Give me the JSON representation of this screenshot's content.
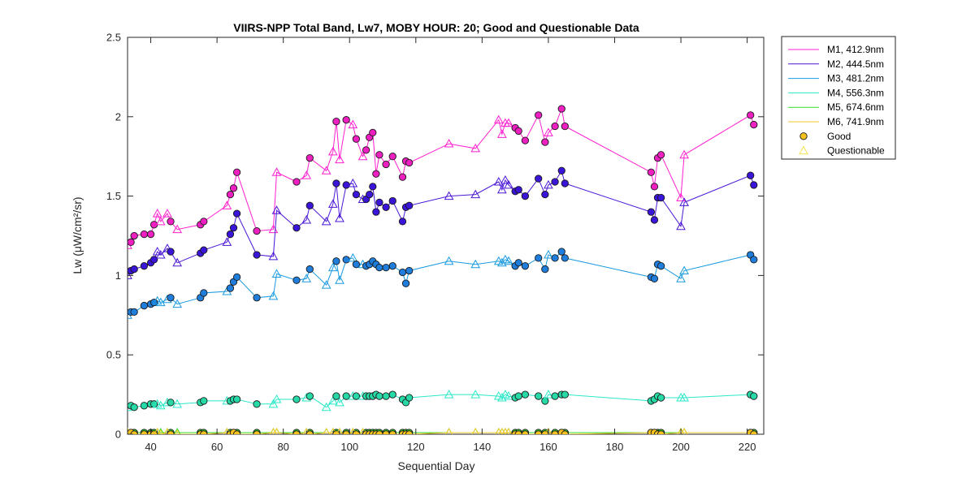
{
  "chart_data": {
    "type": "line",
    "title": "VIIRS-NPP Total Band,  Lw7, MOBY HOUR: 20;  Good and Questionable Data",
    "xlabel": "Sequential Day",
    "ylabel": "Lw (μW/cm²/sr)",
    "xlim": [
      33,
      225
    ],
    "ylim": [
      0,
      2.5
    ],
    "xticks": [
      40,
      60,
      80,
      100,
      120,
      140,
      160,
      180,
      200,
      220
    ],
    "yticks": [
      0,
      0.5,
      1,
      1.5,
      2,
      2.5
    ],
    "xtick_labels": [
      "40",
      "60",
      "80",
      "100",
      "120",
      "140",
      "160",
      "180",
      "200",
      "220"
    ],
    "ytick_labels": [
      "0",
      "0.5",
      "1",
      "1.5",
      "2",
      "2.5"
    ],
    "x": [
      33,
      34,
      35,
      38,
      40,
      41,
      42,
      43,
      45,
      46,
      48,
      55,
      56,
      63,
      64,
      65,
      66,
      72,
      77,
      78,
      84,
      87,
      88,
      93,
      95,
      96,
      97,
      99,
      101,
      102,
      104,
      105,
      106,
      107,
      108,
      109,
      111,
      113,
      116,
      117,
      118,
      130,
      138,
      145,
      146,
      147,
      148,
      150,
      151,
      153,
      157,
      159,
      160,
      162,
      164,
      165,
      191,
      192,
      193,
      194,
      200,
      201,
      221,
      222
    ],
    "quality": [
      "Q",
      "G",
      "G",
      "G",
      "G",
      "G",
      "Q",
      "Q",
      "Q",
      "G",
      "Q",
      "G",
      "G",
      "Q",
      "G",
      "G",
      "G",
      "G",
      "Q",
      "Q",
      "G",
      "Q",
      "G",
      "Q",
      "Q",
      "G",
      "Q",
      "G",
      "Q",
      "G",
      "Q",
      "G",
      "G",
      "G",
      "G",
      "G",
      "G",
      "G",
      "G",
      "G",
      "G",
      "Q",
      "Q",
      "Q",
      "Q",
      "Q",
      "Q",
      "G",
      "G",
      "G",
      "G",
      "G",
      "Q",
      "G",
      "G",
      "G",
      "G",
      "G",
      "G",
      "G",
      "Q",
      "Q",
      "G",
      "G"
    ],
    "series": [
      {
        "name": "M1, 412.9nm",
        "color": "#ff1fcf",
        "fill": "#ee1fc0",
        "values": [
          1.19,
          1.21,
          1.25,
          1.26,
          1.26,
          1.32,
          1.39,
          1.34,
          1.39,
          1.34,
          1.29,
          1.32,
          1.34,
          1.44,
          1.51,
          1.55,
          1.65,
          1.28,
          1.29,
          1.65,
          1.59,
          1.63,
          1.74,
          1.66,
          1.78,
          1.97,
          1.73,
          1.98,
          1.95,
          1.86,
          1.75,
          1.79,
          1.87,
          1.9,
          1.64,
          1.76,
          1.7,
          1.75,
          1.62,
          1.72,
          1.71,
          1.83,
          1.8,
          1.98,
          1.89,
          1.96,
          1.96,
          1.93,
          1.91,
          1.85,
          2.01,
          1.84,
          1.9,
          1.94,
          2.05,
          1.94,
          1.65,
          1.56,
          1.74,
          1.76,
          1.49,
          1.76,
          2.01,
          1.95
        ]
      },
      {
        "name": "M2, 444.5nm",
        "color": "#4a16d6",
        "fill": "#3a14d8",
        "values": [
          1.0,
          1.03,
          1.04,
          1.06,
          1.08,
          1.1,
          1.15,
          1.13,
          1.17,
          1.15,
          1.08,
          1.14,
          1.16,
          1.21,
          1.26,
          1.3,
          1.39,
          1.13,
          1.12,
          1.41,
          1.3,
          1.35,
          1.44,
          1.34,
          1.45,
          1.58,
          1.36,
          1.57,
          1.58,
          1.51,
          1.48,
          1.48,
          1.51,
          1.56,
          1.4,
          1.46,
          1.43,
          1.47,
          1.34,
          1.43,
          1.44,
          1.5,
          1.51,
          1.59,
          1.54,
          1.6,
          1.57,
          1.53,
          1.54,
          1.5,
          1.61,
          1.51,
          1.57,
          1.59,
          1.66,
          1.58,
          1.4,
          1.35,
          1.49,
          1.49,
          1.31,
          1.46,
          1.63,
          1.57
        ]
      },
      {
        "name": "M3, 481.2nm",
        "color": "#1a9ae0",
        "fill": "#1f7ddc",
        "values": [
          0.75,
          0.77,
          0.77,
          0.81,
          0.82,
          0.83,
          0.84,
          0.83,
          0.85,
          0.86,
          0.82,
          0.86,
          0.89,
          0.9,
          0.92,
          0.96,
          0.99,
          0.86,
          0.87,
          1.01,
          0.97,
          0.98,
          1.04,
          0.94,
          1.05,
          1.09,
          0.97,
          1.1,
          1.11,
          1.07,
          1.07,
          1.06,
          1.07,
          1.09,
          1.07,
          1.05,
          1.05,
          1.06,
          1.02,
          0.95,
          1.03,
          1.09,
          1.07,
          1.09,
          1.08,
          1.1,
          1.09,
          1.06,
          1.08,
          1.06,
          1.11,
          1.04,
          1.13,
          1.11,
          1.15,
          1.11,
          0.99,
          0.98,
          1.07,
          1.06,
          0.98,
          1.03,
          1.13,
          1.1
        ]
      },
      {
        "name": "M4, 556.3nm",
        "color": "#2ae8c8",
        "fill": "#26d9a6",
        "values": [
          0.17,
          0.18,
          0.17,
          0.18,
          0.19,
          0.19,
          0.19,
          0.18,
          0.2,
          0.2,
          0.19,
          0.2,
          0.21,
          0.21,
          0.21,
          0.22,
          0.22,
          0.19,
          0.19,
          0.22,
          0.22,
          0.23,
          0.24,
          0.17,
          0.21,
          0.24,
          0.2,
          0.24,
          0.24,
          0.24,
          0.24,
          0.24,
          0.24,
          0.24,
          0.25,
          0.24,
          0.24,
          0.25,
          0.22,
          0.2,
          0.23,
          0.25,
          0.25,
          0.24,
          0.23,
          0.25,
          0.24,
          0.23,
          0.24,
          0.25,
          0.24,
          0.21,
          0.25,
          0.24,
          0.25,
          0.25,
          0.21,
          0.22,
          0.24,
          0.23,
          0.23,
          0.23,
          0.25,
          0.24
        ]
      },
      {
        "name": "M5, 674.6nm",
        "color": "#33dd2b",
        "fill": "#32cc32",
        "values": [
          0.01,
          0.01,
          0.01,
          0.01,
          0.01,
          0.01,
          0.01,
          0.01,
          0.01,
          0.01,
          0.01,
          0.01,
          0.01,
          0.01,
          0.01,
          0.01,
          0.01,
          0.01,
          0.01,
          0.01,
          0.01,
          0.01,
          0.01,
          0.01,
          0.01,
          0.01,
          0.01,
          0.01,
          0.01,
          0.01,
          0.01,
          0.01,
          0.01,
          0.01,
          0.01,
          0.01,
          0.01,
          0.01,
          0.01,
          0.01,
          0.01,
          0.01,
          0.01,
          0.01,
          0.01,
          0.01,
          0.01,
          0.01,
          0.01,
          0.01,
          0.01,
          0.01,
          0.01,
          0.01,
          0.01,
          0.01,
          0.01,
          0.01,
          0.01,
          0.01,
          0.01,
          0.01,
          0.01,
          0.01
        ]
      },
      {
        "name": "M6, 741.9nm",
        "color": "#f2c82c",
        "fill": "#f4c21f",
        "values": [
          0.01,
          0.01,
          0.0,
          0.0,
          0.0,
          0.0,
          0.01,
          0.0,
          0.01,
          0.0,
          0.0,
          0.0,
          0.0,
          0.01,
          0.0,
          0.01,
          0.0,
          0.0,
          0.01,
          0.01,
          0.0,
          0.01,
          0.0,
          0.01,
          0.01,
          0.0,
          0.01,
          0.0,
          0.01,
          0.0,
          0.01,
          0.0,
          0.0,
          0.0,
          0.0,
          0.0,
          0.0,
          0.0,
          0.0,
          0.0,
          0.0,
          0.01,
          0.01,
          0.01,
          0.01,
          0.01,
          0.01,
          0.0,
          0.0,
          0.0,
          0.0,
          0.0,
          0.01,
          0.0,
          0.01,
          0.0,
          0.01,
          0.01,
          0.0,
          0.0,
          0.01,
          0.01,
          0.01,
          0.0
        ]
      }
    ],
    "legend": {
      "position": "outside-top-right",
      "entries": [
        "M1, 412.9nm",
        "M2, 444.5nm",
        "M3, 481.2nm",
        "M4, 556.3nm",
        "M5, 674.6nm",
        "M6, 741.9nm",
        "Good",
        "Questionable"
      ],
      "good_marker_color": "#f4c21f",
      "questionable_marker_color": "#f2e24a"
    },
    "grid": false
  }
}
